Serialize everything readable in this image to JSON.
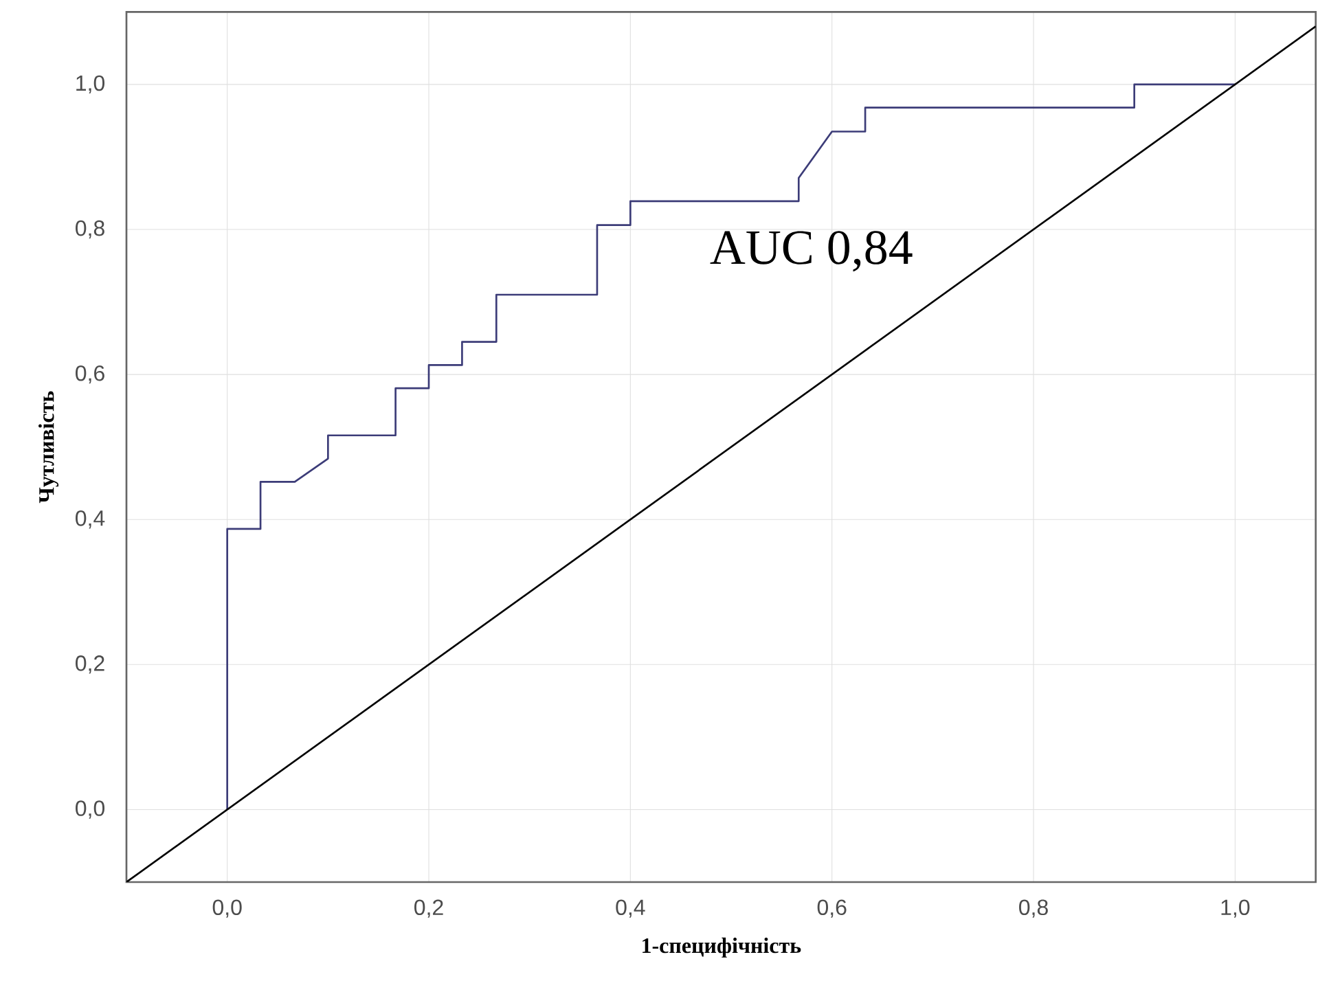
{
  "chart_data": {
    "type": "line",
    "xlabel": "1-специфічність",
    "ylabel": "Чутливість",
    "annotations": [
      "AUC 0,84"
    ],
    "xlim": [
      -0.1,
      1.08
    ],
    "ylim": [
      -0.1,
      1.1
    ],
    "xticks": [
      {
        "value": 0,
        "label": "0,0"
      },
      {
        "value": 0.2,
        "label": "0,2"
      },
      {
        "value": 0.4,
        "label": "0,4"
      },
      {
        "value": 0.6,
        "label": "0,6"
      },
      {
        "value": 0.8,
        "label": "0,8"
      },
      {
        "value": 1.0,
        "label": "1,0"
      }
    ],
    "yticks": [
      {
        "value": 0,
        "label": "0,0"
      },
      {
        "value": 0.2,
        "label": "0,2"
      },
      {
        "value": 0.4,
        "label": "0,4"
      },
      {
        "value": 0.6,
        "label": "0,6"
      },
      {
        "value": 0.8,
        "label": "0,8"
      },
      {
        "value": 1.0,
        "label": "1,0"
      }
    ],
    "grid": true,
    "marker": "none",
    "line_style": "solid",
    "series": [
      {
        "color": "#3c3c78",
        "x": [
          0,
          0,
          0.033,
          0.033,
          0.067,
          0.1,
          0.1,
          0.167,
          0.167,
          0.2,
          0.2,
          0.233,
          0.233,
          0.267,
          0.267,
          0.367,
          0.367,
          0.4,
          0.4,
          0.567,
          0.567,
          0.6,
          0.633,
          0.633,
          0.9,
          0.9,
          1.0
        ],
        "values": [
          0,
          0.387,
          0.387,
          0.452,
          0.452,
          0.484,
          0.516,
          0.516,
          0.581,
          0.581,
          0.613,
          0.613,
          0.645,
          0.645,
          0.71,
          0.71,
          0.806,
          0.806,
          0.839,
          0.839,
          0.871,
          0.935,
          0.935,
          0.968,
          0.968,
          1.0,
          1.0
        ]
      },
      {
        "color": "#000000",
        "x": [
          -0.1,
          1.08
        ],
        "values": [
          -0.1,
          1.08
        ]
      }
    ]
  }
}
